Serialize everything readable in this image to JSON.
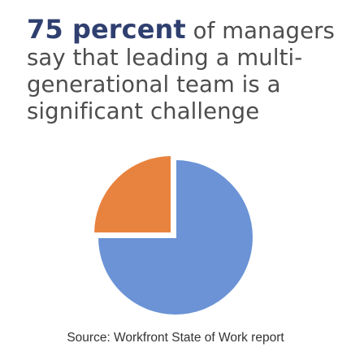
{
  "headline": {
    "stat": "75 percent",
    "rest": " of managers say that leading a multi-generational team is a significant challenge"
  },
  "chart_data": {
    "type": "pie",
    "title": "",
    "slices": [
      {
        "label": "",
        "value": 75,
        "color": "#6b93d6"
      },
      {
        "label": "",
        "value": 25,
        "color": "#e8833f"
      }
    ],
    "exploded_index": 1
  },
  "source": "Source: Workfront State of Work report"
}
